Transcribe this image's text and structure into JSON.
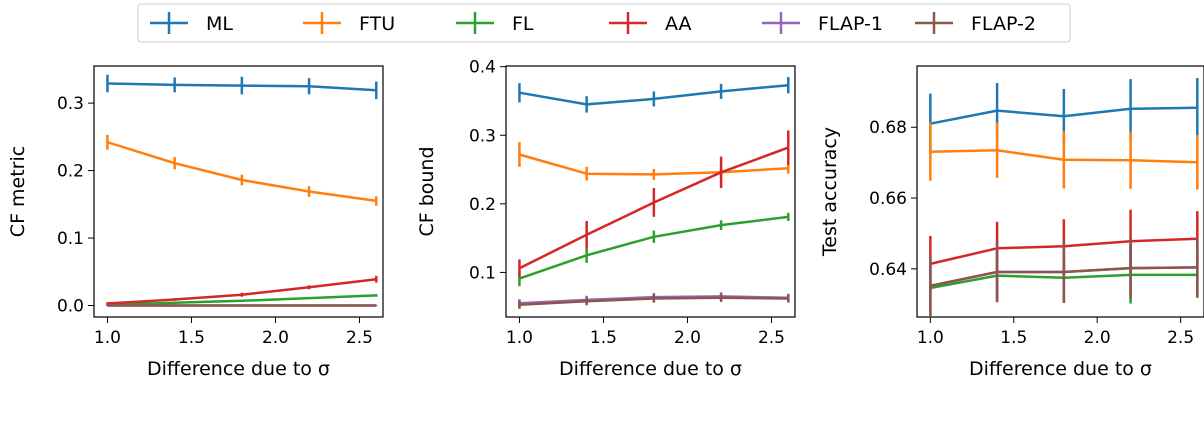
{
  "legend": {
    "placement": "top-center",
    "entries": [
      {
        "label": "ML",
        "color": "#1f77b4"
      },
      {
        "label": "FTU",
        "color": "#ff7f0e"
      },
      {
        "label": "FL",
        "color": "#2ca02c"
      },
      {
        "label": "AA",
        "color": "#d62728"
      },
      {
        "label": "FLAP-1",
        "color": "#9467bd"
      },
      {
        "label": "FLAP-2",
        "color": "#8c564b"
      }
    ]
  },
  "chart_data": [
    {
      "type": "line",
      "xlabel": "Difference due to σ",
      "ylabel": "CF metric",
      "xlim": [
        0.92,
        2.64
      ],
      "ylim": [
        -0.017,
        0.355
      ],
      "xticks": [
        1.0,
        1.5,
        2.0,
        2.5
      ],
      "xtick_labels": [
        "1.0",
        "1.5",
        "2.0",
        "2.5"
      ],
      "yticks": [
        0.0,
        0.1,
        0.2,
        0.3
      ],
      "ytick_labels": [
        "0.0",
        "0.1",
        "0.2",
        "0.3"
      ],
      "x": [
        1.0,
        1.4,
        1.8,
        2.2,
        2.6
      ],
      "grid": false,
      "series": [
        {
          "name": "ML",
          "color": "#1f77b4",
          "values": [
            0.329,
            0.327,
            0.326,
            0.325,
            0.319
          ],
          "errors": [
            0.013,
            0.011,
            0.013,
            0.012,
            0.013
          ]
        },
        {
          "name": "FTU",
          "color": "#ff7f0e",
          "values": [
            0.242,
            0.211,
            0.186,
            0.169,
            0.155
          ],
          "errors": [
            0.011,
            0.009,
            0.008,
            0.008,
            0.007
          ]
        },
        {
          "name": "FL",
          "color": "#2ca02c",
          "values": [
            0.001,
            0.004,
            0.007,
            0.011,
            0.015
          ],
          "errors": [
            0.001,
            0.001,
            0.001,
            0.001,
            0.002
          ]
        },
        {
          "name": "AA",
          "color": "#d62728",
          "values": [
            0.003,
            0.009,
            0.016,
            0.027,
            0.039
          ],
          "errors": [
            0.002,
            0.002,
            0.003,
            0.003,
            0.005
          ]
        },
        {
          "name": "FLAP-1",
          "color": "#9467bd",
          "values": [
            0.0,
            0.0,
            0.0,
            0.0,
            0.0
          ],
          "errors": [
            0.0005,
            0.0005,
            0.0005,
            0.0005,
            0.0005
          ]
        },
        {
          "name": "FLAP-2",
          "color": "#8c564b",
          "values": [
            0.0,
            0.0,
            0.0,
            0.0,
            0.0
          ],
          "errors": [
            0.0005,
            0.0005,
            0.0005,
            0.0005,
            0.0005
          ]
        }
      ]
    },
    {
      "type": "line",
      "xlabel": "Difference due to σ",
      "ylabel": "CF bound",
      "xlim": [
        0.92,
        2.64
      ],
      "ylim": [
        0.035,
        0.401
      ],
      "xticks": [
        1.0,
        1.5,
        2.0,
        2.5
      ],
      "xtick_labels": [
        "1.0",
        "1.5",
        "2.0",
        "2.5"
      ],
      "yticks": [
        0.1,
        0.2,
        0.3,
        0.4
      ],
      "ytick_labels": [
        "0.1",
        "0.2",
        "0.3",
        "0.4"
      ],
      "x": [
        1.0,
        1.4,
        1.8,
        2.2,
        2.6
      ],
      "grid": false,
      "series": [
        {
          "name": "ML",
          "color": "#1f77b4",
          "values": [
            0.362,
            0.345,
            0.353,
            0.364,
            0.373
          ],
          "errors": [
            0.014,
            0.012,
            0.011,
            0.011,
            0.012
          ]
        },
        {
          "name": "FTU",
          "color": "#ff7f0e",
          "values": [
            0.272,
            0.244,
            0.243,
            0.246,
            0.252
          ],
          "errors": [
            0.018,
            0.01,
            0.008,
            0.008,
            0.008
          ]
        },
        {
          "name": "FL",
          "color": "#2ca02c",
          "values": [
            0.091,
            0.125,
            0.152,
            0.169,
            0.181
          ],
          "errors": [
            0.011,
            0.011,
            0.009,
            0.007,
            0.006
          ]
        },
        {
          "name": "AA",
          "color": "#d62728",
          "values": [
            0.106,
            0.155,
            0.202,
            0.246,
            0.282
          ],
          "errors": [
            0.013,
            0.02,
            0.021,
            0.023,
            0.025
          ]
        },
        {
          "name": "FLAP-1",
          "color": "#9467bd",
          "values": [
            0.055,
            0.06,
            0.064,
            0.065,
            0.063
          ],
          "errors": [
            0.006,
            0.006,
            0.006,
            0.006,
            0.006
          ]
        },
        {
          "name": "FLAP-2",
          "color": "#8c564b",
          "values": [
            0.053,
            0.058,
            0.062,
            0.063,
            0.062
          ],
          "errors": [
            0.006,
            0.006,
            0.006,
            0.006,
            0.006
          ]
        }
      ]
    },
    {
      "type": "line",
      "xlabel": "Difference due to σ",
      "ylabel": "Test accuracy",
      "xlim": [
        0.92,
        2.64
      ],
      "ylim": [
        0.6264,
        0.6973
      ],
      "xticks": [
        1.0,
        1.5,
        2.0,
        2.5
      ],
      "xtick_labels": [
        "1.0",
        "1.5",
        "2.0",
        "2.5"
      ],
      "yticks": [
        0.64,
        0.66,
        0.68
      ],
      "ytick_labels": [
        "0.64",
        "0.66",
        "0.68"
      ],
      "x": [
        1.0,
        1.4,
        1.8,
        2.2,
        2.6
      ],
      "grid": false,
      "series": [
        {
          "name": "ML",
          "color": "#1f77b4",
          "values": [
            0.681,
            0.6847,
            0.6831,
            0.6852,
            0.6855
          ],
          "errors": [
            0.0085,
            0.0078,
            0.0077,
            0.0084,
            0.0084
          ]
        },
        {
          "name": "FTU",
          "color": "#ff7f0e",
          "values": [
            0.6731,
            0.6735,
            0.6708,
            0.6707,
            0.6701
          ],
          "errors": [
            0.0082,
            0.0078,
            0.0081,
            0.0081,
            0.0077
          ]
        },
        {
          "name": "FL",
          "color": "#2ca02c",
          "values": [
            0.6346,
            0.6381,
            0.6375,
            0.6383,
            0.6383
          ],
          "errors": [
            0.0067,
            0.0068,
            0.0069,
            0.0081,
            0.0065
          ]
        },
        {
          "name": "AA",
          "color": "#d62728",
          "values": [
            0.6414,
            0.6458,
            0.6464,
            0.6478,
            0.6485
          ],
          "errors": [
            0.0079,
            0.0075,
            0.0076,
            0.0089,
            0.0078
          ]
        },
        {
          "name": "FLAP-1",
          "color": "#9467bd",
          "values": [
            0.6352,
            0.6391,
            0.6391,
            0.6402,
            0.6404
          ],
          "errors": [
            0.0085,
            0.0085,
            0.0087,
            0.0086,
            0.0083
          ]
        },
        {
          "name": "FLAP-2",
          "color": "#8c564b",
          "values": [
            0.6352,
            0.6391,
            0.6391,
            0.6402,
            0.6404
          ],
          "errors": [
            0.0085,
            0.0085,
            0.0087,
            0.0086,
            0.0083
          ]
        }
      ]
    }
  ]
}
